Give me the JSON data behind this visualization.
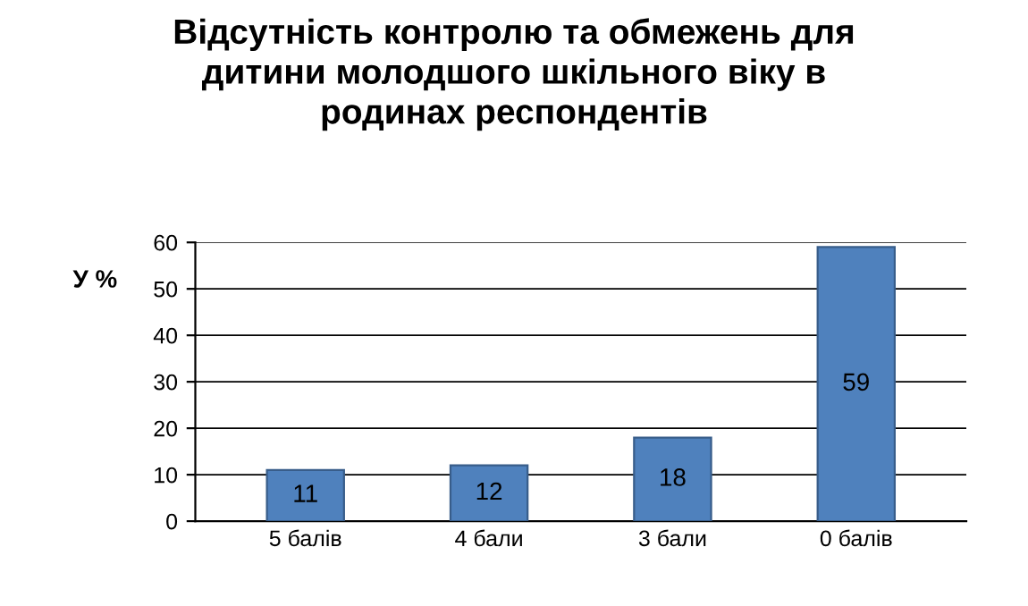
{
  "chart_data": {
    "type": "bar",
    "title": "Відсутність контролю та обмежень для\nдитини молодшого шкільного віку в\nродинах респондентів",
    "ylabel": "У %",
    "categories": [
      "5 балів",
      "4 бали",
      "3 бали",
      "0 балів"
    ],
    "values": [
      11,
      12,
      18,
      59
    ],
    "color": "#4f81bd",
    "ylim": [
      0,
      60
    ],
    "yticks": [
      0,
      10,
      20,
      30,
      40,
      50,
      60
    ],
    "grid": "y",
    "data_labels": true
  }
}
